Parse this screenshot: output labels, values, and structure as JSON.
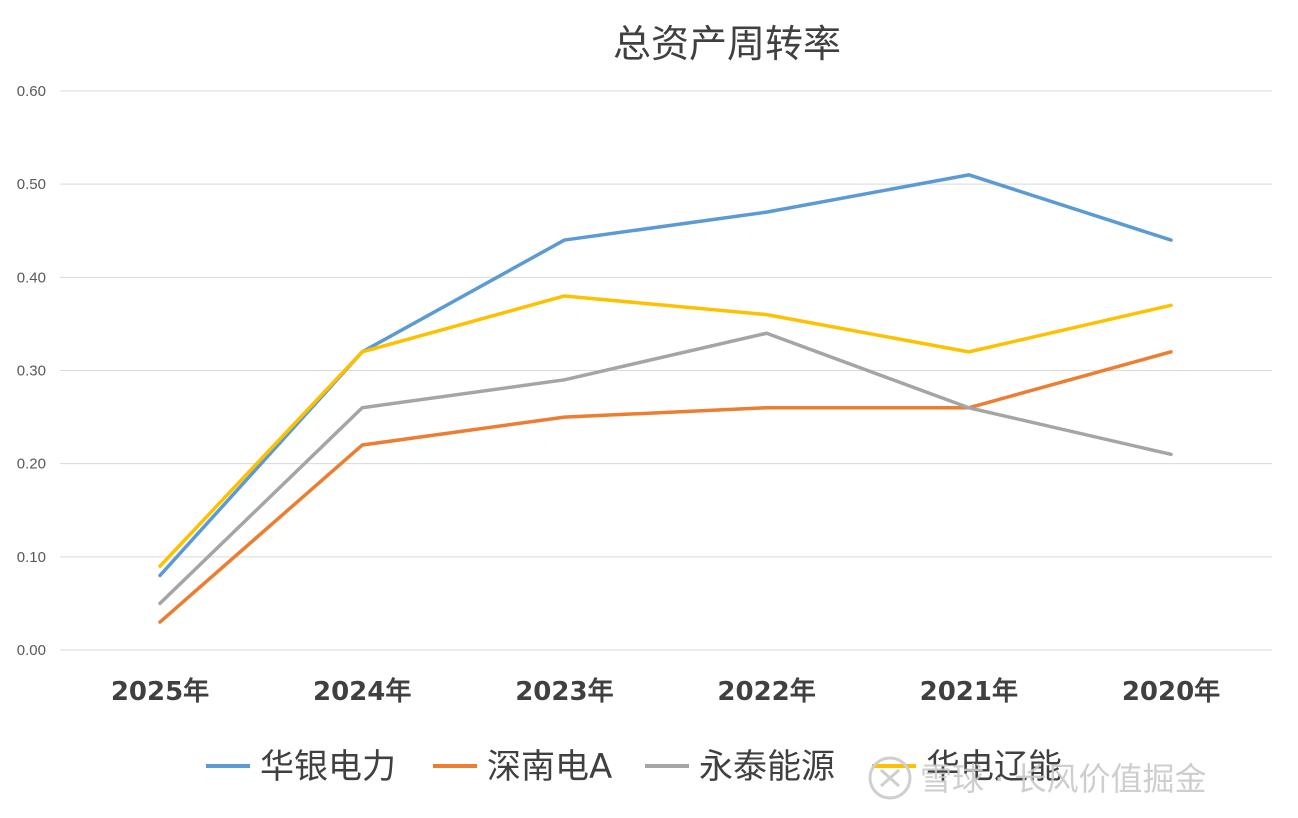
{
  "chart_data": {
    "type": "line",
    "title": "总资产周转率",
    "categories": [
      "2025年",
      "2024年",
      "2023年",
      "2022年",
      "2021年",
      "2020年"
    ],
    "ylim": [
      0,
      0.6
    ],
    "yticks": [
      "0.00",
      "0.10",
      "0.20",
      "0.30",
      "0.40",
      "0.50",
      "0.60"
    ],
    "grid": true,
    "legend_position": "bottom",
    "series": [
      {
        "name": "华银电力",
        "color": "#5b9bd5",
        "values": [
          0.08,
          0.32,
          0.44,
          0.47,
          0.51,
          0.44
        ]
      },
      {
        "name": "深南电A",
        "color": "#ed7d31",
        "values": [
          0.03,
          0.22,
          0.25,
          0.26,
          0.26,
          0.32
        ]
      },
      {
        "name": "永泰能源",
        "color": "#a5a5a5",
        "values": [
          0.05,
          0.26,
          0.29,
          0.34,
          0.26,
          0.21
        ]
      },
      {
        "name": "华电辽能",
        "color": "#ffc000",
        "values": [
          0.09,
          0.32,
          0.38,
          0.36,
          0.32,
          0.37
        ]
      }
    ]
  },
  "watermark": {
    "text": "雪球 · 长风价值掘金",
    "icon": "snowball-logo-icon"
  }
}
